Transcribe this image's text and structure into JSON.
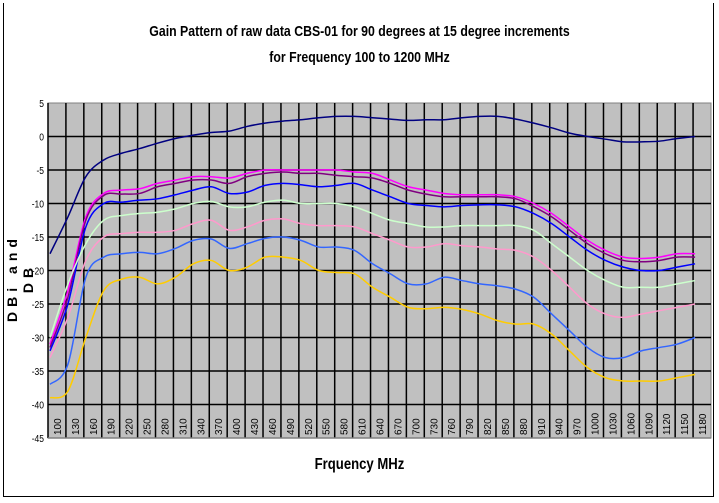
{
  "chart_data": {
    "type": "line",
    "title": "Gain Pattern of raw data CBS-01 for 90 degrees at 15 degree increments",
    "subtitle": "for Frequency 100 to 1200 MHz",
    "xlabel": "Frquency MHz",
    "ylabel": "DBi and DB",
    "ylim": [
      -45,
      5
    ],
    "yticks": [
      "5",
      "0",
      "-5",
      "-10",
      "-15",
      "-20",
      "-25",
      "-30",
      "-35",
      "-40",
      "-45"
    ],
    "grid": true,
    "legend": "none",
    "categories": [
      "100",
      "130",
      "160",
      "190",
      "220",
      "250",
      "280",
      "310",
      "340",
      "370",
      "400",
      "430",
      "460",
      "490",
      "520",
      "550",
      "580",
      "610",
      "640",
      "670",
      "700",
      "730",
      "760",
      "790",
      "820",
      "850",
      "880",
      "910",
      "940",
      "970",
      "1000",
      "1030",
      "1060",
      "1090",
      "1120",
      "1150",
      "1180"
    ],
    "series": [
      {
        "color": "#000080",
        "values": [
          -17.5,
          -12,
          -6,
          -3.5,
          -2.5,
          -1.8,
          -1,
          -0.3,
          0.2,
          0.6,
          0.8,
          1.5,
          2,
          2.3,
          2.5,
          2.8,
          3,
          3,
          2.8,
          2.6,
          2.4,
          2.5,
          2.5,
          2.8,
          3,
          3,
          2.6,
          2,
          1.3,
          0.5,
          0,
          -0.4,
          -0.8,
          -0.8,
          -0.7,
          -0.3,
          0
        ]
      },
      {
        "color": "#ff00ff",
        "values": [
          -31,
          -23,
          -12,
          -8.5,
          -8,
          -7.8,
          -7,
          -6.5,
          -6,
          -6,
          -6.2,
          -5.5,
          -5,
          -5,
          -5,
          -5,
          -5,
          -5.3,
          -5.5,
          -6.5,
          -7.5,
          -8,
          -8.5,
          -8.7,
          -8.7,
          -8.7,
          -9,
          -10,
          -11.5,
          -13.5,
          -15.5,
          -17,
          -18,
          -18.2,
          -18,
          -17.5,
          -17.5
        ]
      },
      {
        "color": "#800080",
        "values": [
          -31.5,
          -24,
          -12.5,
          -8.8,
          -8.6,
          -8.5,
          -7.5,
          -7,
          -6.5,
          -6.5,
          -7,
          -6,
          -5.5,
          -5.3,
          -5.5,
          -5.5,
          -5.8,
          -6,
          -6.2,
          -7,
          -8,
          -8.6,
          -9,
          -9,
          -9,
          -9,
          -9.3,
          -10.5,
          -12,
          -14,
          -16,
          -17.5,
          -18.5,
          -18.7,
          -18.5,
          -18,
          -18
        ]
      },
      {
        "color": "#0000ff",
        "values": [
          -32,
          -25,
          -13.5,
          -10,
          -9.8,
          -9.5,
          -9.3,
          -8.7,
          -8,
          -7.5,
          -8.5,
          -8.3,
          -7.3,
          -7,
          -7.2,
          -7.5,
          -7.3,
          -7,
          -8,
          -9,
          -10,
          -10.3,
          -10.5,
          -10.3,
          -10.2,
          -10.2,
          -10.5,
          -11.5,
          -13,
          -15,
          -17,
          -18.5,
          -19.5,
          -20,
          -20,
          -19.5,
          -19
        ]
      },
      {
        "color": "#ccffcc",
        "values": [
          -30,
          -22,
          -16,
          -12.5,
          -11.8,
          -11.5,
          -11.3,
          -10.8,
          -10,
          -9.7,
          -10.5,
          -10.5,
          -9.8,
          -9.5,
          -10,
          -10,
          -10,
          -10.5,
          -11.5,
          -12.5,
          -13,
          -13.5,
          -13.5,
          -13.3,
          -13.3,
          -13.3,
          -13.3,
          -14,
          -16,
          -18,
          -20,
          -21.5,
          -22.5,
          -22.5,
          -22.5,
          -22,
          -21.5
        ]
      },
      {
        "color": "#ff99cc",
        "values": [
          -33,
          -27,
          -18.5,
          -15,
          -14.5,
          -14.3,
          -14.3,
          -14,
          -13,
          -12.5,
          -14,
          -13.5,
          -12.5,
          -12.3,
          -13,
          -13.3,
          -13.3,
          -13.5,
          -14.5,
          -15.5,
          -16.5,
          -16.5,
          -16,
          -16.3,
          -16.5,
          -16.8,
          -17,
          -18,
          -20,
          -22.5,
          -25,
          -26.5,
          -27,
          -26.5,
          -26,
          -25.5,
          -25
        ]
      },
      {
        "color": "#3366ff",
        "values": [
          -37,
          -34,
          -21,
          -18,
          -17.5,
          -17.3,
          -17.5,
          -16.7,
          -15.5,
          -15.3,
          -16.7,
          -16,
          -15.2,
          -15,
          -15.5,
          -16.5,
          -16.5,
          -17,
          -19,
          -20.5,
          -22,
          -22,
          -21,
          -21.5,
          -22,
          -22.3,
          -22.8,
          -24,
          -26.5,
          -29,
          -31.5,
          -33,
          -33,
          -32,
          -31.5,
          -31,
          -30
        ]
      },
      {
        "color": "#ffcc00",
        "values": [
          -39,
          -38,
          -30,
          -23,
          -21.3,
          -21,
          -22,
          -21,
          -19,
          -18.5,
          -20,
          -19.5,
          -18,
          -18,
          -18.5,
          -20,
          -20.3,
          -20.5,
          -22.5,
          -24,
          -25.5,
          -25.7,
          -25.5,
          -25.8,
          -26.5,
          -27.5,
          -28,
          -28,
          -29.5,
          -32,
          -34.5,
          -36,
          -36.5,
          -36.5,
          -36.5,
          -36,
          -35.5
        ]
      }
    ]
  }
}
